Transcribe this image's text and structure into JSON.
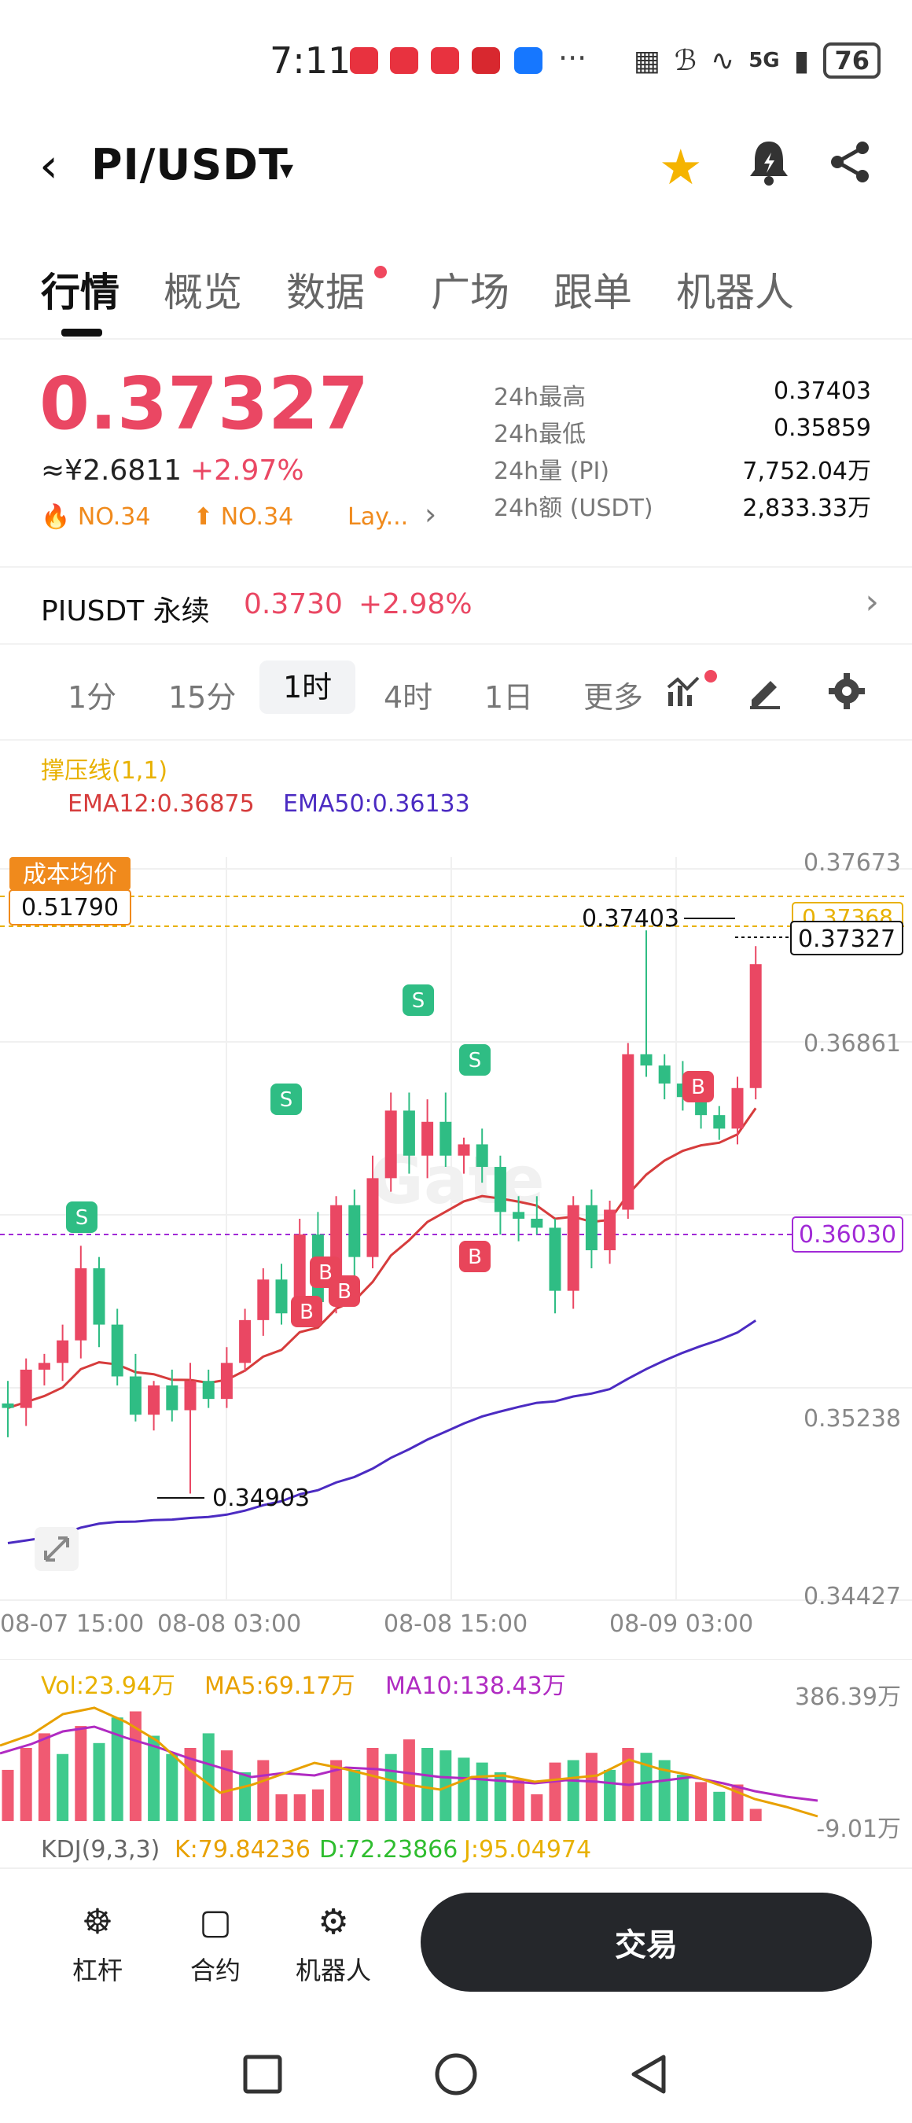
{
  "status_bar": {
    "time": "7:11",
    "signal": "5G",
    "battery": "76",
    "more": "···"
  },
  "header": {
    "back_icon": "‹",
    "pair": "PI/USDT",
    "caret": "▾"
  },
  "tabs": [
    "行情",
    "概览",
    "数据",
    "广场",
    "跟单",
    "机器人"
  ],
  "price": {
    "last": "0.37327",
    "cny": "≈¥2.6811",
    "change": "+2.97%",
    "rank1": "NO.34",
    "rank2": "NO.34",
    "layer": "Lay...",
    "stats": [
      {
        "label": "24h最高",
        "value": "0.37403"
      },
      {
        "label": "24h最低",
        "value": "0.35859"
      },
      {
        "label": "24h量 (PI)",
        "value": "7,752.04万"
      },
      {
        "label": "24h额 (USDT)",
        "value": "2,833.33万"
      }
    ]
  },
  "perpetual": {
    "name": "PIUSDT 永续",
    "price": "0.3730",
    "change": "+2.98%"
  },
  "intervals": [
    "1分",
    "15分",
    "1时",
    "4时",
    "1日",
    "更多"
  ],
  "chart": {
    "indicator_title": "撑压线(1,1)",
    "ema12": "EMA12:0.36875",
    "ema50": "EMA50:0.36133",
    "cost_label": "成本均价",
    "cost_value": "0.51790",
    "y_ticks": [
      "0.37673",
      "0.36861",
      "0.35238",
      "0.34427"
    ],
    "high_label": "0.37403",
    "low_label": "0.34903",
    "current_label": "0.37327",
    "yellow_label": "0.37368",
    "purple_label": "0.36030",
    "x_ticks": [
      "08-07 15:00",
      "08-08 03:00",
      "08-08 15:00",
      "08-09 03:00"
    ],
    "watermark": "Gate",
    "buy_marker": "B",
    "sell_marker": "S"
  },
  "chart_data": {
    "type": "candlestick",
    "y_range": [
      0.34427,
      0.37673
    ],
    "candles": [
      [
        0.353,
        0.354,
        0.3515,
        0.3528
      ],
      [
        0.3528,
        0.355,
        0.352,
        0.3545
      ],
      [
        0.3545,
        0.3552,
        0.3538,
        0.3548
      ],
      [
        0.3548,
        0.3565,
        0.354,
        0.3558
      ],
      [
        0.3558,
        0.36,
        0.355,
        0.359
      ],
      [
        0.359,
        0.3595,
        0.3555,
        0.3565
      ],
      [
        0.3565,
        0.3572,
        0.3538,
        0.3542
      ],
      [
        0.3542,
        0.3552,
        0.3522,
        0.3525
      ],
      [
        0.3525,
        0.354,
        0.3518,
        0.3538
      ],
      [
        0.3538,
        0.3545,
        0.3522,
        0.3527
      ],
      [
        0.3527,
        0.3548,
        0.349,
        0.354
      ],
      [
        0.354,
        0.3545,
        0.3528,
        0.3532
      ],
      [
        0.3532,
        0.3555,
        0.3528,
        0.3548
      ],
      [
        0.3548,
        0.3572,
        0.3544,
        0.3567
      ],
      [
        0.3567,
        0.359,
        0.356,
        0.3585
      ],
      [
        0.3585,
        0.3592,
        0.3565,
        0.357
      ],
      [
        0.357,
        0.3612,
        0.3565,
        0.3605
      ],
      [
        0.3605,
        0.3615,
        0.357,
        0.3575
      ],
      [
        0.3575,
        0.3622,
        0.357,
        0.3618
      ],
      [
        0.3618,
        0.3625,
        0.3585,
        0.3595
      ],
      [
        0.3595,
        0.364,
        0.359,
        0.363
      ],
      [
        0.363,
        0.3668,
        0.3624,
        0.366
      ],
      [
        0.366,
        0.3668,
        0.3632,
        0.364
      ],
      [
        0.364,
        0.3665,
        0.363,
        0.3655
      ],
      [
        0.3655,
        0.3668,
        0.3635,
        0.364
      ],
      [
        0.364,
        0.3648,
        0.3632,
        0.3645
      ],
      [
        0.3645,
        0.3652,
        0.3628,
        0.3635
      ],
      [
        0.3635,
        0.364,
        0.3605,
        0.3615
      ],
      [
        0.3615,
        0.3622,
        0.3602,
        0.3612
      ],
      [
        0.3612,
        0.3622,
        0.3605,
        0.3608
      ],
      [
        0.3608,
        0.3612,
        0.357,
        0.358
      ],
      [
        0.358,
        0.3622,
        0.3572,
        0.3618
      ],
      [
        0.3618,
        0.3625,
        0.359,
        0.3598
      ],
      [
        0.3598,
        0.362,
        0.3592,
        0.3616
      ],
      [
        0.3616,
        0.369,
        0.3612,
        0.3685
      ],
      [
        0.3685,
        0.374,
        0.3675,
        0.368
      ],
      [
        0.368,
        0.3685,
        0.3665,
        0.3672
      ],
      [
        0.3672,
        0.3682,
        0.366,
        0.3666
      ],
      [
        0.3666,
        0.3675,
        0.3652,
        0.3658
      ],
      [
        0.3658,
        0.3662,
        0.3647,
        0.3652
      ],
      [
        0.3652,
        0.3675,
        0.3645,
        0.367
      ],
      [
        0.367,
        0.3733,
        0.3665,
        0.3725
      ]
    ],
    "volume": [
      42,
      60,
      72,
      55,
      78,
      64,
      85,
      90,
      70,
      55,
      60,
      72,
      58,
      40,
      50,
      22,
      22,
      26,
      50,
      42,
      60,
      55,
      67,
      60,
      58,
      52,
      48,
      40,
      34,
      22,
      48,
      50,
      56,
      42,
      60,
      56,
      50,
      38,
      32,
      24,
      30,
      10
    ],
    "volume_up": [
      false,
      false,
      false,
      true,
      false,
      true,
      true,
      false,
      true,
      true,
      false,
      true,
      false,
      true,
      false,
      false,
      false,
      false,
      false,
      true,
      false,
      true,
      false,
      true,
      true,
      true,
      true,
      true,
      false,
      false,
      false,
      true,
      false,
      true,
      false,
      true,
      true,
      true,
      false,
      true,
      false,
      false
    ]
  }
}
